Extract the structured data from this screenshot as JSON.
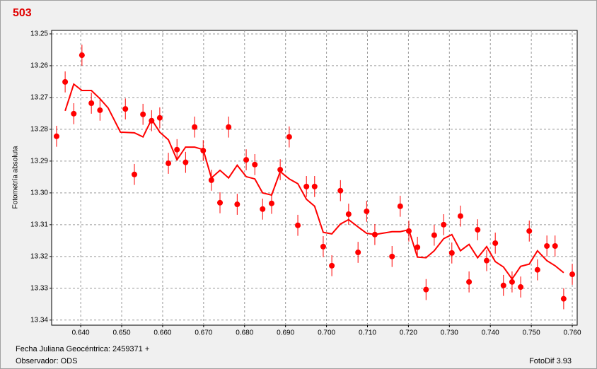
{
  "chart_data": {
    "type": "scatter",
    "title": "503",
    "y_label": "Fotometría absoluta",
    "x_label": "Fecha Juliana Geocéntrica: 2459371 +",
    "observer": "Observador: ODS",
    "software": "FotoDif 3.93",
    "color": "#ff0000",
    "grid": true,
    "y_inverted": true,
    "xlim": [
      0.6329,
      0.7612
    ],
    "ylim": [
      13.2489,
      13.3416
    ],
    "xticks": [
      {
        "value": 0.64,
        "label": "0.640"
      },
      {
        "value": 0.65,
        "label": "0.650"
      },
      {
        "value": 0.66,
        "label": "0.660"
      },
      {
        "value": 0.67,
        "label": "0.670"
      },
      {
        "value": 0.68,
        "label": "0.680"
      },
      {
        "value": 0.69,
        "label": "0.690"
      },
      {
        "value": 0.7,
        "label": "0.700"
      },
      {
        "value": 0.71,
        "label": "0.710"
      },
      {
        "value": 0.72,
        "label": "0.720"
      },
      {
        "value": 0.73,
        "label": "0.730"
      },
      {
        "value": 0.74,
        "label": "0.740"
      },
      {
        "value": 0.75,
        "label": "0.750"
      },
      {
        "value": 0.76,
        "label": "0.760"
      }
    ],
    "yticks": [
      13.25,
      13.26,
      13.27,
      13.28,
      13.29,
      {
        "value": 13.3,
        "label": "13.30"
      },
      13.31,
      13.32,
      13.33,
      13.34
    ],
    "series": [
      {
        "color": "#ff0000",
        "error": 0.0033,
        "x": [
          0.6341,
          0.6362,
          0.6383,
          0.6403,
          0.6426,
          0.6447,
          0.6509,
          0.6531,
          0.6552,
          0.6573,
          0.6593,
          0.6614,
          0.6635,
          0.6656,
          0.6678,
          0.6699,
          0.6719,
          0.674,
          0.6761,
          0.6782,
          0.6804,
          0.6825,
          0.6844,
          0.6866,
          0.6887,
          0.6909,
          0.693,
          0.6951,
          0.6971,
          0.6992,
          0.7013,
          0.7034,
          0.7054,
          0.7077,
          0.7098,
          0.7118,
          0.716,
          0.718,
          0.7201,
          0.7222,
          0.7243,
          0.7263,
          0.7286,
          0.7306,
          0.7327,
          0.7348,
          0.7369,
          0.7391,
          0.7412,
          0.7432,
          0.7453,
          0.7474,
          0.7495,
          0.7515,
          0.7538,
          0.7558,
          0.7579,
          0.76
        ],
        "values": [
          13.2822,
          13.2651,
          13.2751,
          13.2567,
          13.2718,
          13.274,
          13.2736,
          13.2942,
          13.2753,
          13.2773,
          13.2764,
          13.2907,
          13.2864,
          13.2904,
          13.2793,
          13.2867,
          13.296,
          13.3031,
          13.2793,
          13.3036,
          13.2896,
          13.2911,
          13.3051,
          13.3033,
          13.2927,
          13.2824,
          13.3102,
          13.298,
          13.298,
          13.3169,
          13.3229,
          13.2993,
          13.3067,
          13.3187,
          13.3058,
          13.3131,
          13.32,
          13.3042,
          13.312,
          13.3171,
          13.3304,
          13.3133,
          13.31,
          13.3189,
          13.3073,
          13.328,
          13.3116,
          13.3213,
          13.3158,
          13.3291,
          13.328,
          13.3296,
          13.312,
          13.3242,
          13.3167,
          13.3167,
          13.3333,
          13.3256
        ]
      },
      {
        "color": "#ff0000",
        "x": [
          0.6362,
          0.6383,
          0.6403,
          0.6426,
          0.6447,
          0.6467,
          0.6497,
          0.6531,
          0.6552,
          0.6573,
          0.6593,
          0.6614,
          0.6635,
          0.6656,
          0.6678,
          0.6699,
          0.6719,
          0.674,
          0.6761,
          0.6782,
          0.6804,
          0.6825,
          0.6844,
          0.6866,
          0.6887,
          0.6909,
          0.693,
          0.6951,
          0.6971,
          0.6992,
          0.7013,
          0.7034,
          0.7054,
          0.7077,
          0.7098,
          0.7118,
          0.716,
          0.718,
          0.7201,
          0.7222,
          0.7243,
          0.7263,
          0.7286,
          0.7306,
          0.7327,
          0.7348,
          0.7369,
          0.7391,
          0.7412,
          0.7432,
          0.7453,
          0.7474,
          0.7495,
          0.7515,
          0.7538,
          0.7558,
          0.7579
        ],
        "values": [
          13.2742,
          13.2658,
          13.2678,
          13.2678,
          13.2704,
          13.2733,
          13.2809,
          13.2811,
          13.2824,
          13.2769,
          13.2809,
          13.2833,
          13.2896,
          13.2856,
          13.2856,
          13.2864,
          13.2953,
          13.2929,
          13.2953,
          13.2913,
          13.2949,
          13.2956,
          13.3,
          13.3007,
          13.2933,
          13.2956,
          13.2971,
          13.302,
          13.3042,
          13.3124,
          13.3129,
          13.3098,
          13.3084,
          13.3107,
          13.3127,
          13.3131,
          13.3122,
          13.3122,
          13.3116,
          13.3202,
          13.3204,
          13.3182,
          13.3144,
          13.3131,
          13.3182,
          13.3162,
          13.3204,
          13.3169,
          13.3216,
          13.3233,
          13.3271,
          13.3231,
          13.3224,
          13.3182,
          13.3213,
          13.3229,
          13.3251
        ]
      }
    ]
  }
}
